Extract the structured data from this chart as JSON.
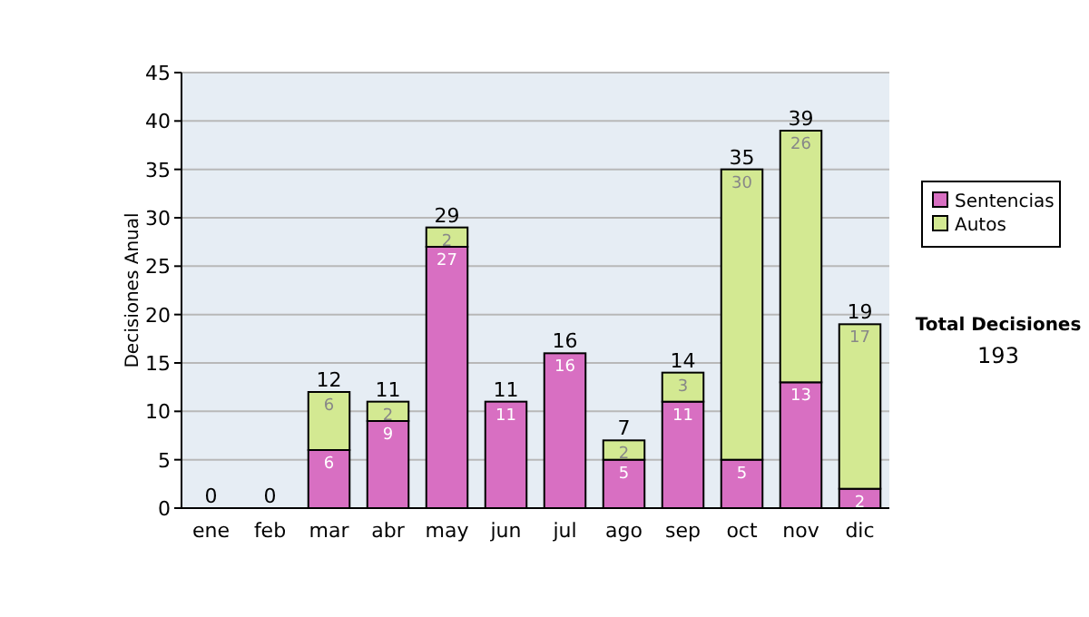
{
  "chart_data": {
    "type": "bar",
    "stacked": true,
    "ylabel": "Decisiones Anual",
    "categories": [
      "ene",
      "feb",
      "mar",
      "abr",
      "may",
      "jun",
      "jul",
      "ago",
      "sep",
      "oct",
      "nov",
      "dic"
    ],
    "series": [
      {
        "name": "Sentencias",
        "color": "#d86fc2",
        "values": [
          0,
          0,
          6,
          9,
          27,
          11,
          16,
          5,
          11,
          5,
          13,
          2
        ],
        "value_labels": [
          null,
          null,
          "6",
          "9",
          "27",
          "11",
          "16",
          "5",
          "11",
          "5",
          "13",
          "2"
        ]
      },
      {
        "name": "Autos",
        "color": "#d3e992",
        "values": [
          0,
          0,
          6,
          2,
          2,
          0,
          0,
          2,
          3,
          30,
          26,
          17
        ],
        "value_labels": [
          null,
          null,
          "6",
          "2",
          "2",
          null,
          null,
          "2",
          "3",
          "30",
          "26",
          "17"
        ]
      }
    ],
    "totals": [
      "0",
      "0",
      "12",
      "11",
      "29",
      "11",
      "16",
      "7",
      "14",
      "35",
      "39",
      "19"
    ],
    "ylim": [
      0,
      45
    ],
    "yticks": [
      0,
      5,
      10,
      15,
      20,
      25,
      30,
      35,
      40,
      45
    ],
    "grid": "y",
    "legend": "right",
    "annotations": [
      "Total Decisiones",
      "193"
    ]
  }
}
